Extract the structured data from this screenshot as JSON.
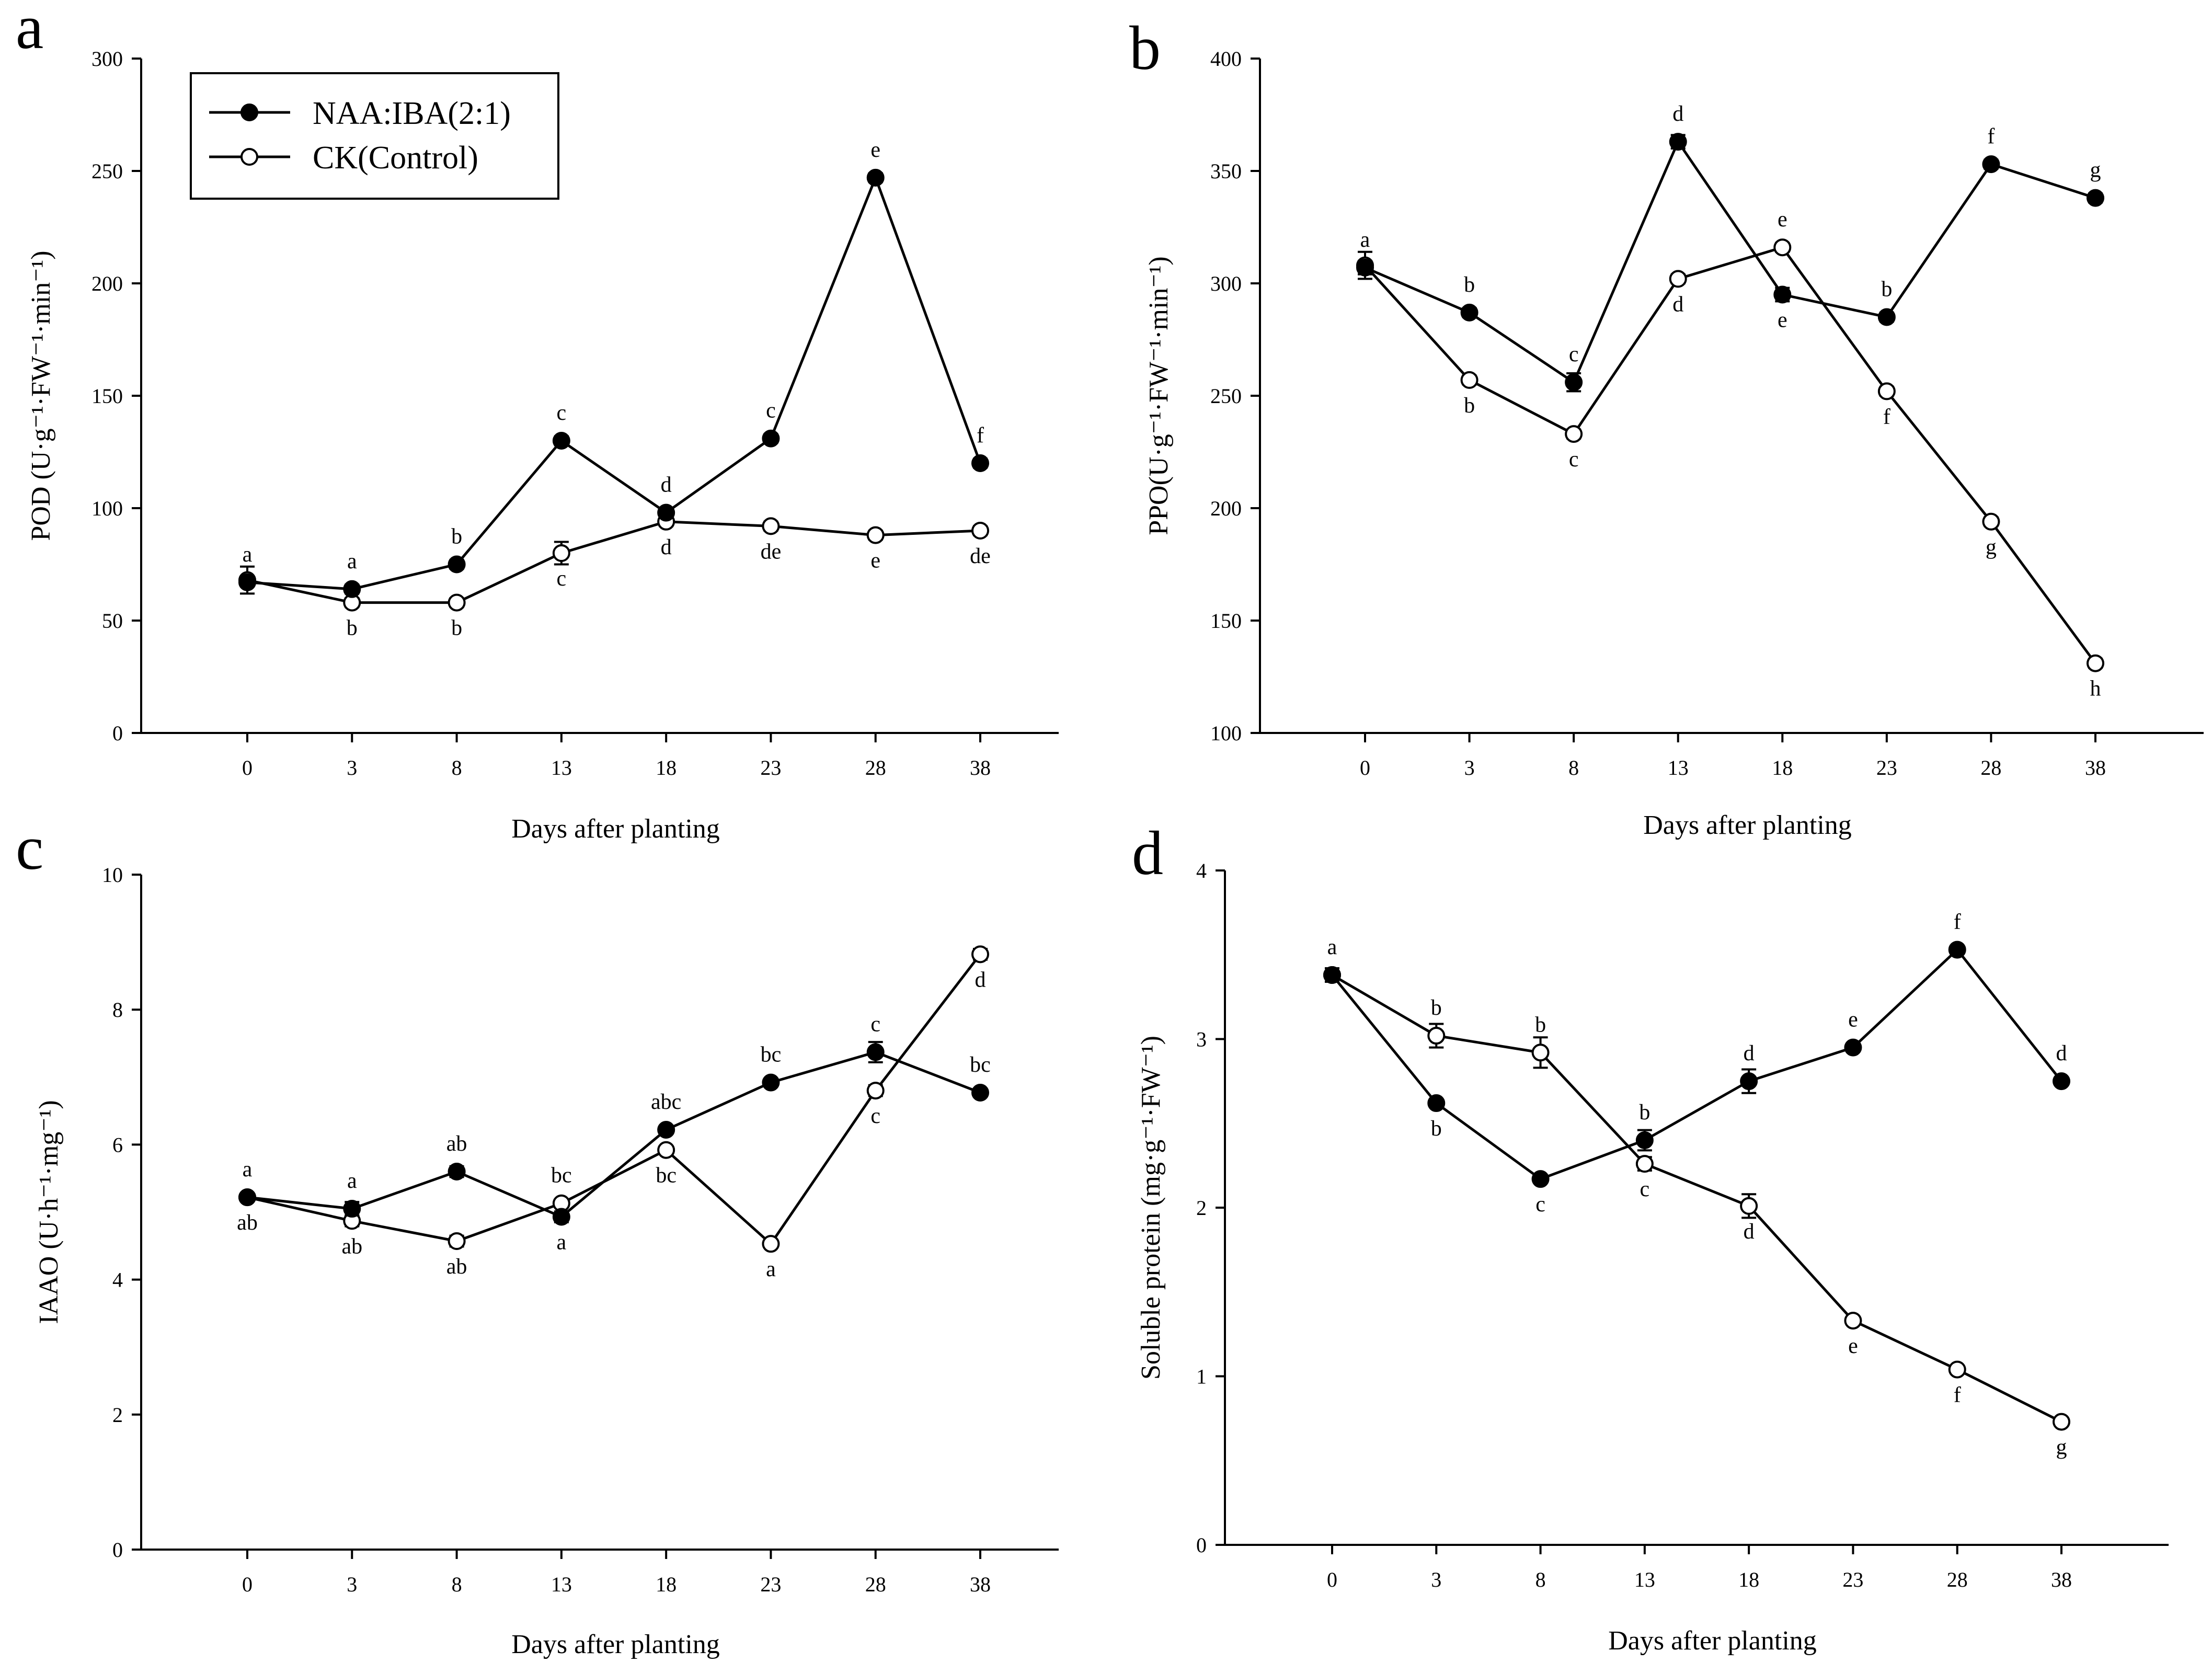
{
  "legend": {
    "series": [
      {
        "name": "NAA:IBA(2:1)",
        "marker": "filled-circle"
      },
      {
        "name": "CK(Control)",
        "marker": "open-circle"
      }
    ]
  },
  "chart_data": [
    {
      "panel": "a",
      "type": "line",
      "categories": [
        "0",
        "3",
        "8",
        "13",
        "18",
        "23",
        "28",
        "38"
      ],
      "xlabel": "Days after planting",
      "ylabel": "POD (U·g⁻¹·FW⁻¹·min⁻¹)",
      "ylim": [
        0,
        300
      ],
      "yticks": [
        0,
        50,
        100,
        150,
        200,
        250,
        300
      ],
      "legend_position": "top-left",
      "series": [
        {
          "name": "NAA:IBA(2:1)",
          "marker": "filled",
          "values": [
            67,
            64,
            75,
            130,
            98,
            131,
            247,
            120
          ],
          "errors": [
            0,
            2,
            2,
            2,
            2,
            2,
            2,
            2
          ],
          "labels": [
            "a",
            "a",
            "b",
            "c",
            "d",
            "c",
            "e",
            "f"
          ],
          "label_side": [
            "above",
            "above",
            "above",
            "above",
            "above",
            "above",
            "above",
            "above"
          ]
        },
        {
          "name": "CK(Control)",
          "marker": "open",
          "values": [
            68,
            58,
            58,
            80,
            94,
            92,
            88,
            90
          ],
          "errors": [
            6,
            2,
            2,
            5,
            2,
            2,
            2,
            2
          ],
          "labels": [
            "",
            "b",
            "b",
            "c",
            "d",
            "de",
            "e",
            "de"
          ],
          "label_side": [
            "below",
            "below",
            "below",
            "below",
            "below",
            "below",
            "below",
            "below"
          ]
        }
      ]
    },
    {
      "panel": "b",
      "type": "line",
      "categories": [
        "0",
        "3",
        "8",
        "13",
        "18",
        "23",
        "28",
        "38"
      ],
      "xlabel": "Days after planting",
      "ylabel": "PPO(U·g⁻¹·FW⁻¹·min⁻¹)",
      "ylim": [
        100,
        400
      ],
      "yticks": [
        100,
        150,
        200,
        250,
        300,
        350,
        400
      ],
      "series": [
        {
          "name": "NAA:IBA(2:1)",
          "marker": "filled",
          "values": [
            307,
            287,
            256,
            363,
            295,
            285,
            353,
            338
          ],
          "errors": [
            3,
            2,
            4,
            3,
            3,
            2,
            2,
            2
          ],
          "labels": [
            "a",
            "b",
            "c",
            "d",
            "e",
            "b",
            "f",
            "g"
          ],
          "label_side": [
            "above",
            "above",
            "above",
            "above",
            "below",
            "above",
            "above",
            "above"
          ]
        },
        {
          "name": "CK(Control)",
          "marker": "open",
          "values": [
            308,
            257,
            233,
            302,
            316,
            252,
            194,
            131
          ],
          "errors": [
            6,
            2,
            2,
            2,
            2,
            2,
            2,
            2
          ],
          "labels": [
            "",
            "b",
            "c",
            "d",
            "e",
            "f",
            "g",
            "h"
          ],
          "label_side": [
            "below",
            "below",
            "below",
            "below",
            "above",
            "below",
            "below",
            "below"
          ]
        }
      ]
    },
    {
      "panel": "c",
      "type": "line",
      "categories": [
        "0",
        "3",
        "8",
        "13",
        "18",
        "23",
        "28",
        "38"
      ],
      "xlabel": "Days after planting",
      "ylabel": "IAAO (U·h⁻¹·mg⁻¹)",
      "ylim": [
        0,
        10
      ],
      "yticks": [
        0,
        2,
        4,
        6,
        8,
        10
      ],
      "series": [
        {
          "name": "NAA:IBA(2:1)",
          "marker": "filled",
          "values": [
            5.22,
            5.05,
            5.6,
            4.93,
            6.22,
            6.92,
            7.37,
            6.77
          ],
          "errors": [
            0.05,
            0.1,
            0.08,
            0.08,
            0.06,
            0.05,
            0.15,
            0.06
          ],
          "labels": [
            "a",
            "a",
            "ab",
            "a",
            "abc",
            "bc",
            "c",
            "bc"
          ],
          "label_side": [
            "above",
            "above",
            "above",
            "below",
            "above",
            "above",
            "above",
            "above"
          ]
        },
        {
          "name": "CK(Control)",
          "marker": "open",
          "values": [
            5.22,
            4.87,
            4.57,
            5.13,
            5.92,
            4.53,
            6.8,
            8.82
          ],
          "errors": [
            0.05,
            0.08,
            0.08,
            0.05,
            0.05,
            0.05,
            0.08,
            0.08
          ],
          "labels": [
            "ab",
            "ab",
            "ab",
            "bc",
            "bc",
            "a",
            "c",
            "d"
          ],
          "label_side": [
            "below",
            "below",
            "below",
            "above",
            "below",
            "below",
            "below",
            "below"
          ]
        }
      ]
    },
    {
      "panel": "d",
      "type": "line",
      "categories": [
        "0",
        "3",
        "8",
        "13",
        "18",
        "23",
        "28",
        "38"
      ],
      "xlabel": "Days after planting",
      "ylabel": "Soluble protein (mg·g⁻¹·FW⁻¹)",
      "ylim": [
        0,
        4
      ],
      "yticks": [
        0,
        1,
        2,
        3,
        4
      ],
      "series": [
        {
          "name": "NAA:IBA(2:1)",
          "marker": "filled",
          "values": [
            3.38,
            2.62,
            2.17,
            2.4,
            2.75,
            2.95,
            3.53,
            2.75
          ],
          "errors": [
            0.04,
            0.02,
            0.02,
            0.06,
            0.07,
            0.02,
            0.02,
            0.02
          ],
          "labels": [
            "a",
            "b",
            "c",
            "b",
            "d",
            "e",
            "f",
            "d"
          ],
          "label_side": [
            "above",
            "below",
            "below",
            "above",
            "above",
            "above",
            "above",
            "above"
          ]
        },
        {
          "name": "CK(Control)",
          "marker": "open",
          "values": [
            3.38,
            3.02,
            2.92,
            2.26,
            2.01,
            1.33,
            1.04,
            0.73
          ],
          "errors": [
            0.04,
            0.07,
            0.09,
            0.04,
            0.07,
            0.02,
            0.02,
            0.02
          ],
          "labels": [
            "",
            "b",
            "b",
            "c",
            "d",
            "e",
            "f",
            "g"
          ],
          "label_side": [
            "below",
            "above",
            "above",
            "below",
            "below",
            "below",
            "below",
            "below"
          ]
        }
      ]
    }
  ]
}
